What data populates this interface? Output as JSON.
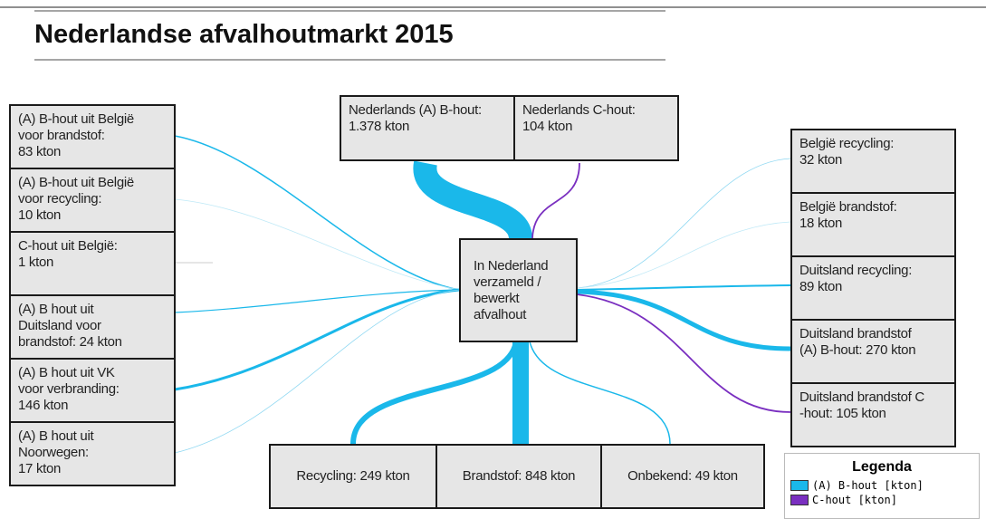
{
  "title": "Nederlandse afvalhoutmarkt 2015",
  "nodes": [
    {
      "lines": [
        "Nederlands (A) B-hout:",
        "1.378 kton"
      ]
    },
    {
      "lines": [
        "Nederlands C-hout:",
        "104 kton"
      ]
    },
    {
      "lines": [
        "(A) B-hout uit België",
        "voor brandstof:",
        "83 kton"
      ]
    },
    {
      "lines": [
        "(A) B-hout uit België",
        "voor recycling:",
        "10 kton"
      ]
    },
    {
      "lines": [
        "C-hout uit België:",
        "1 kton"
      ]
    },
    {
      "lines": [
        "(A) B hout uit",
        "Duitsland voor",
        "brandstof: 24 kton"
      ]
    },
    {
      "lines": [
        "(A) B hout uit VK",
        "voor verbranding:",
        "146 kton"
      ]
    },
    {
      "lines": [
        "(A) B hout uit",
        "Noorwegen:",
        "17 kton"
      ]
    },
    {
      "lines": [
        "In Nederland",
        "verzameld /",
        "bewerkt",
        "afvalhout"
      ]
    },
    {
      "lines": [
        "België recycling:",
        "32 kton"
      ]
    },
    {
      "lines": [
        "België brandstof:",
        "18 kton"
      ]
    },
    {
      "lines": [
        "Duitsland recycling:",
        "89 kton"
      ]
    },
    {
      "lines": [
        "Duitsland brandstof",
        "(A) B-hout: 270 kton"
      ]
    },
    {
      "lines": [
        "Duitsland brandstof C",
        "-hout: 105 kton"
      ]
    },
    {
      "lines": [
        "Recycling: 249 kton"
      ]
    },
    {
      "lines": [
        "Brandstof: 848 kton"
      ]
    },
    {
      "lines": [
        "Onbekend: 49 kton"
      ]
    }
  ],
  "legend": {
    "title": "Legenda",
    "items": [
      "(A) B-hout [kton]",
      "C-hout [kton]"
    ]
  }
}
